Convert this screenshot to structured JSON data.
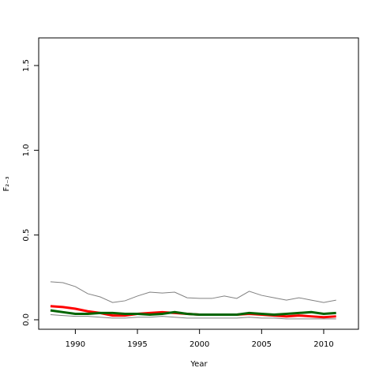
{
  "chart_data": {
    "type": "line",
    "x_label": "Year",
    "y_label": "F₂₋₃",
    "x": [
      1988,
      1989,
      1990,
      1991,
      1992,
      1993,
      1994,
      1995,
      1996,
      1997,
      1998,
      1999,
      2000,
      2001,
      2002,
      2003,
      2004,
      2005,
      2006,
      2007,
      2008,
      2009,
      2010,
      2011
    ],
    "series": [
      {
        "color": "#808080",
        "width": 1,
        "values": [
          0.224,
          0.219,
          0.196,
          0.154,
          0.135,
          0.102,
          0.112,
          0.14,
          0.163,
          0.158,
          0.163,
          0.13,
          0.126,
          0.126,
          0.14,
          0.126,
          0.168,
          0.144,
          0.13,
          0.116,
          0.13,
          0.116,
          0.102,
          0.116
        ]
      },
      {
        "color": "#808080",
        "width": 1,
        "values": [
          0.03,
          0.025,
          0.02,
          0.02,
          0.015,
          0.01,
          0.01,
          0.015,
          0.015,
          0.02,
          0.015,
          0.01,
          0.01,
          0.01,
          0.01,
          0.01,
          0.015,
          0.01,
          0.01,
          0.005,
          0.005,
          0.005,
          0.005,
          0.005
        ]
      },
      {
        "color": "#ff0000",
        "width": 3,
        "values": [
          0.08,
          0.075,
          0.065,
          0.05,
          0.04,
          0.025,
          0.025,
          0.035,
          0.04,
          0.045,
          0.04,
          0.035,
          0.03,
          0.03,
          0.03,
          0.03,
          0.035,
          0.03,
          0.025,
          0.02,
          0.025,
          0.02,
          0.015,
          0.02
        ]
      },
      {
        "color": "#006400",
        "width": 3,
        "values": [
          0.055,
          0.045,
          0.035,
          0.035,
          0.04,
          0.04,
          0.035,
          0.035,
          0.03,
          0.035,
          0.045,
          0.035,
          0.03,
          0.03,
          0.03,
          0.03,
          0.04,
          0.035,
          0.03,
          0.035,
          0.04,
          0.045,
          0.035,
          0.04
        ]
      }
    ],
    "xlim": [
      1987.05,
      2012.8
    ],
    "xticks": [
      1990,
      1995,
      2000,
      2005,
      2010
    ],
    "ylim": [
      -0.056,
      1.663
    ],
    "yticks": [
      {
        "value": 0,
        "label": "0.0"
      },
      {
        "value": 0.5,
        "label": "0.5"
      },
      {
        "value": 1,
        "label": "1.0"
      },
      {
        "value": 1.5,
        "label": "1.5"
      }
    ]
  }
}
